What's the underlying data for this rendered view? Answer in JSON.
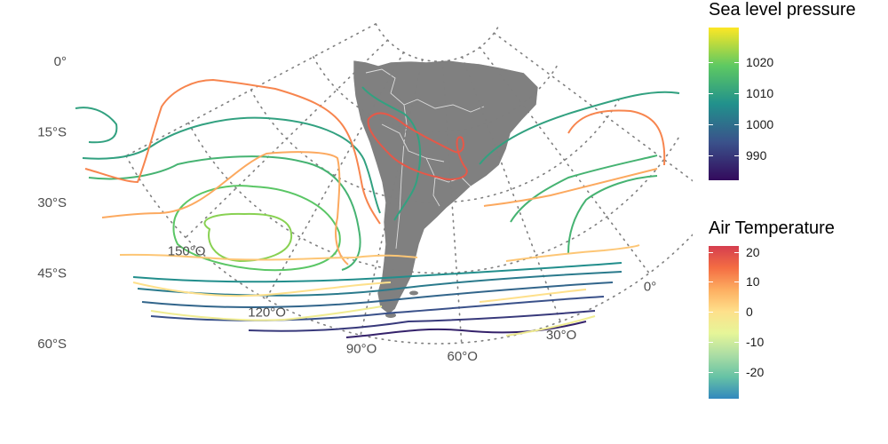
{
  "map": {
    "lat_labels": [
      {
        "lat": 0,
        "label": "0°"
      },
      {
        "lat": -15,
        "label": "15°S"
      },
      {
        "lat": -30,
        "label": "30°S"
      },
      {
        "lat": -45,
        "label": "45°S"
      },
      {
        "lat": -60,
        "label": "60°S"
      }
    ],
    "lon_labels": [
      {
        "lon": -150,
        "label": "150°O"
      },
      {
        "lon": -120,
        "label": "120°O"
      },
      {
        "lon": -90,
        "label": "90°O"
      },
      {
        "lon": -60,
        "label": "60°O"
      },
      {
        "lon": -30,
        "label": "30°O"
      },
      {
        "lon": 0,
        "label": "0°"
      }
    ],
    "extent": {
      "lon_min": -180,
      "lon_max": 40,
      "lat_min": -60,
      "lat_max": 0
    },
    "land_color": "#808080",
    "grid_color": "#7f7f7f"
  },
  "legend": {
    "pressure": {
      "title": "Sea level pressure",
      "min": 982,
      "max": 1031,
      "ticks": [
        990,
        1000,
        1010,
        1020
      ],
      "tick_labels": [
        "990",
        "1000",
        "1010",
        "1020"
      ],
      "colors": [
        "#330a5c",
        "#3a528b",
        "#21918c",
        "#5ec962",
        "#fde725"
      ]
    },
    "temperature": {
      "title": "Air Temperature",
      "min": -29,
      "max": 22,
      "ticks": [
        -20,
        -10,
        0,
        10,
        20
      ],
      "tick_labels": [
        "-20",
        "-10",
        "0",
        "10",
        "20"
      ],
      "colors": [
        "#3288bd",
        "#66c2a5",
        "#abdda4",
        "#e6f598",
        "#fee08b",
        "#fdae61",
        "#f46d43",
        "#d53e4f"
      ]
    }
  }
}
